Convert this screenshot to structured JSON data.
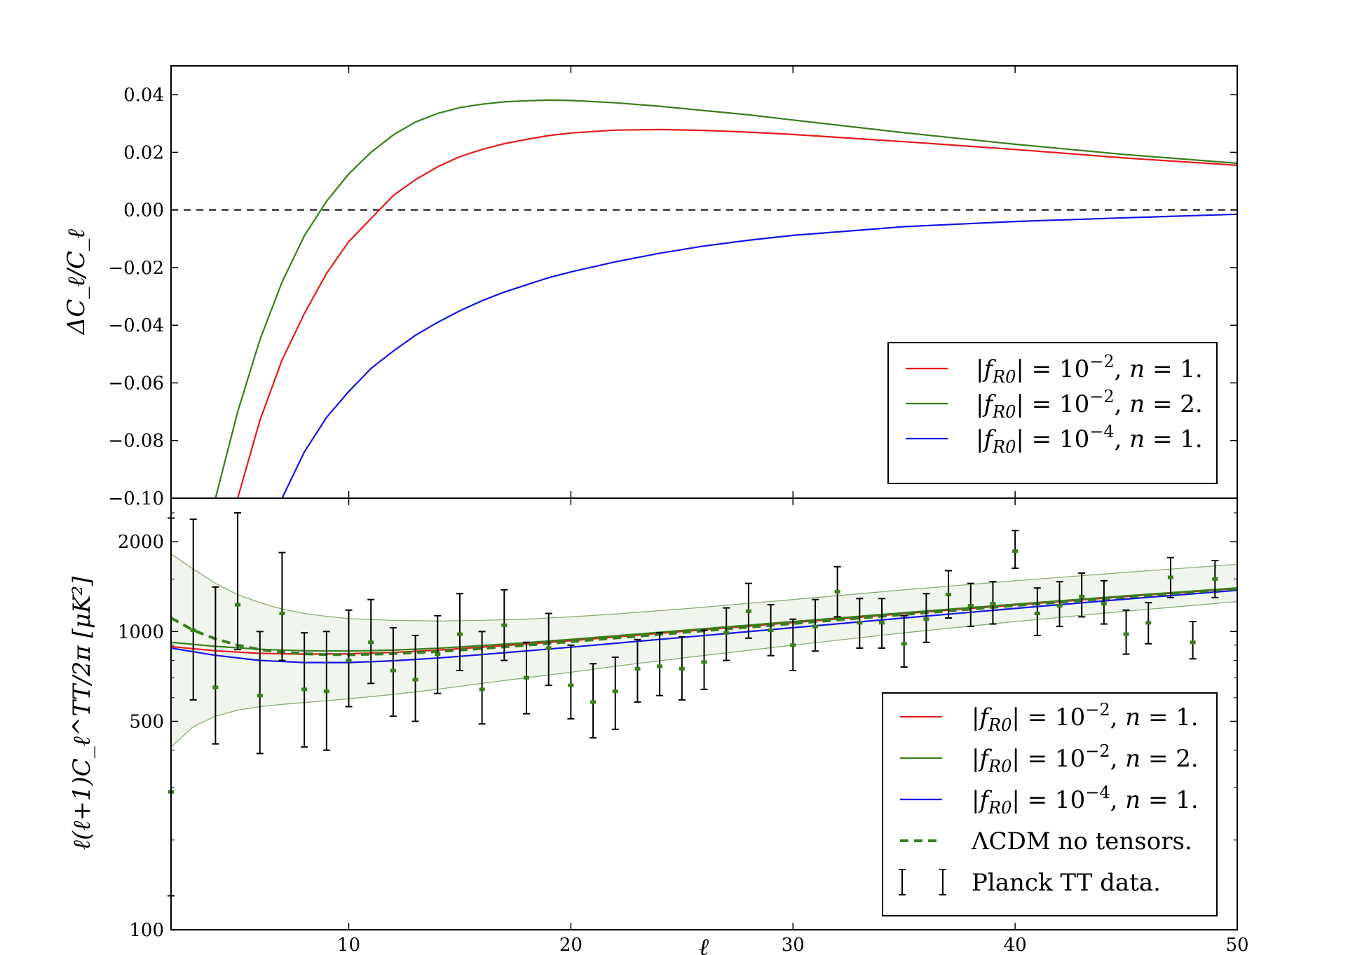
{
  "chart_data": [
    {
      "type": "line",
      "title": "",
      "xlabel": "",
      "ylabel": "ΔC_ℓ/C_ℓ",
      "xlim": [
        2,
        50
      ],
      "ylim": [
        -0.1,
        0.05
      ],
      "yticks": [
        0.04,
        0.02,
        0.0,
        -0.02,
        -0.04,
        -0.06,
        -0.08,
        -0.1
      ],
      "ytick_labels": [
        "0.04",
        "0.02",
        "0.00",
        "−0.02",
        "−0.04",
        "−0.06",
        "−0.08",
        "−0.10"
      ],
      "legend_position": "lower-right",
      "reference_line": {
        "y": 0.0,
        "style": "dashed",
        "color": "#000000"
      },
      "series": [
        {
          "name": "|f_R0| = 10^−2, n = 1.",
          "color": "#e41a1c",
          "x": [
            5,
            6,
            7,
            8,
            9,
            10,
            11,
            12,
            13,
            14,
            15,
            16,
            17,
            18,
            19,
            20,
            22,
            24,
            26,
            28,
            30,
            35,
            40,
            45,
            50
          ],
          "y": [
            -0.1,
            -0.073,
            -0.052,
            -0.036,
            -0.022,
            -0.011,
            -0.003,
            0.005,
            0.0105,
            0.015,
            0.0185,
            0.021,
            0.023,
            0.0245,
            0.0258,
            0.0267,
            0.0277,
            0.0279,
            0.0276,
            0.027,
            0.0262,
            0.0237,
            0.021,
            0.018,
            0.0155
          ]
        },
        {
          "name": "|f_R0| = 10^−2, n = 2.",
          "color": "#3a7d1c",
          "x": [
            4,
            5,
            6,
            7,
            8,
            9,
            10,
            11,
            12,
            13,
            14,
            15,
            16,
            17,
            18,
            19,
            20,
            22,
            24,
            26,
            28,
            30,
            35,
            40,
            45,
            50
          ],
          "y": [
            -0.1,
            -0.07,
            -0.045,
            -0.025,
            -0.009,
            0.003,
            0.0125,
            0.02,
            0.026,
            0.0305,
            0.0335,
            0.0355,
            0.0367,
            0.0375,
            0.0379,
            0.0381,
            0.038,
            0.0372,
            0.036,
            0.0345,
            0.033,
            0.0312,
            0.0268,
            0.0228,
            0.0192,
            0.0162
          ]
        },
        {
          "name": "|f_R0| = 10^−4, n = 1.",
          "color": "#1414e6",
          "x": [
            7,
            8,
            9,
            10,
            11,
            12,
            13,
            14,
            15,
            16,
            17,
            18,
            19,
            20,
            22,
            24,
            26,
            28,
            30,
            35,
            40,
            45,
            50
          ],
          "y": [
            -0.1,
            -0.084,
            -0.072,
            -0.063,
            -0.055,
            -0.049,
            -0.0435,
            -0.039,
            -0.035,
            -0.0315,
            -0.0285,
            -0.026,
            -0.0235,
            -0.0215,
            -0.018,
            -0.015,
            -0.0125,
            -0.0105,
            -0.0088,
            -0.0058,
            -0.004,
            -0.0027,
            -0.0015
          ]
        }
      ]
    },
    {
      "type": "line",
      "title": "",
      "xlabel": "ℓ",
      "ylabel": "ℓ(ℓ+1)C_ℓ^TT/2π [μK²]",
      "xlim": [
        2,
        50
      ],
      "ylim": [
        100,
        2800
      ],
      "yscale": "log",
      "xticks": [
        10,
        20,
        30,
        40,
        50
      ],
      "xtick_labels": [
        "10",
        "20",
        "30",
        "40",
        "50"
      ],
      "yticks": [
        2000,
        1000,
        500,
        100
      ],
      "ytick_labels": [
        "2000",
        "1000",
        "500",
        "100"
      ],
      "legend_position": "lower-right",
      "band": {
        "color": "#3a7d1c",
        "x": [
          2,
          3,
          4,
          5,
          6,
          7,
          8,
          9,
          10,
          12,
          14,
          16,
          18,
          20,
          22,
          25,
          30,
          35,
          40,
          45,
          50
        ],
        "upper": [
          1820,
          1620,
          1450,
          1330,
          1250,
          1190,
          1150,
          1125,
          1105,
          1090,
          1085,
          1090,
          1100,
          1120,
          1145,
          1190,
          1280,
          1380,
          1480,
          1580,
          1680
        ],
        "lower": [
          410,
          480,
          520,
          545,
          560,
          570,
          578,
          586,
          595,
          615,
          640,
          670,
          700,
          730,
          765,
          815,
          900,
          990,
          1080,
          1170,
          1260
        ]
      },
      "series": [
        {
          "name": "|f_R0| = 10^−2, n = 1.",
          "color": "#e41a1c",
          "style": "solid",
          "x": [
            2,
            4,
            6,
            8,
            10,
            12,
            14,
            16,
            18,
            20,
            25,
            30,
            35,
            40,
            45,
            50
          ],
          "y": [
            890,
            862,
            845,
            840,
            842,
            851,
            866,
            886,
            908,
            932,
            1000,
            1072,
            1148,
            1228,
            1310,
            1395
          ]
        },
        {
          "name": "|f_R0| = 10^−2, n = 2.",
          "color": "#3a7d1c",
          "style": "solid",
          "x": [
            2,
            4,
            6,
            8,
            10,
            12,
            14,
            16,
            18,
            20,
            25,
            30,
            35,
            40,
            45,
            50
          ],
          "y": [
            920,
            892,
            872,
            862,
            860,
            866,
            879,
            897,
            918,
            941,
            1008,
            1080,
            1156,
            1235,
            1317,
            1400
          ]
        },
        {
          "name": "|f_R0| = 10^−4, n = 1.",
          "color": "#1414e6",
          "style": "solid",
          "x": [
            2,
            4,
            6,
            8,
            10,
            12,
            14,
            16,
            18,
            20,
            25,
            30,
            35,
            40,
            45,
            50
          ],
          "y": [
            880,
            832,
            800,
            787,
            787,
            798,
            815,
            837,
            861,
            886,
            955,
            1030,
            1110,
            1195,
            1285,
            1375
          ]
        },
        {
          "name": "ΛCDM no tensors.",
          "color": "#3a7d1c",
          "style": "dashed",
          "x": [
            2,
            3,
            4,
            5,
            6,
            7,
            8,
            9,
            10,
            12,
            14,
            16,
            18,
            20,
            25,
            30,
            35,
            40,
            45,
            50
          ],
          "y": [
            1110,
            1010,
            945,
            900,
            870,
            852,
            842,
            837,
            836,
            843,
            857,
            877,
            900,
            925,
            992,
            1064,
            1141,
            1222,
            1306,
            1392
          ]
        },
        {
          "name": "Planck TT data.",
          "color": "#000000",
          "style": "errorbar",
          "marker_color": "#3a7d1c",
          "x": [
            2,
            3,
            4,
            5,
            6,
            7,
            8,
            9,
            10,
            11,
            12,
            13,
            14,
            15,
            16,
            17,
            18,
            19,
            20,
            21,
            22,
            23,
            24,
            25,
            26,
            27,
            28,
            29,
            30,
            31,
            32,
            33,
            34,
            35,
            36,
            37,
            38,
            39,
            40,
            41,
            42,
            43,
            44,
            45,
            46,
            47,
            48,
            49
          ],
          "y": [
            290,
            1010,
            650,
            1230,
            610,
            1150,
            640,
            630,
            800,
            920,
            740,
            690,
            840,
            980,
            640,
            1050,
            700,
            880,
            660,
            580,
            630,
            750,
            765,
            750,
            790,
            990,
            1170,
            1010,
            900,
            1040,
            1360,
            1070,
            1070,
            910,
            1100,
            1330,
            1220,
            1240,
            1860,
            1150,
            1220,
            1310,
            1240,
            980,
            1070,
            1520,
            920,
            1500
          ],
          "lo": [
            130,
            590,
            420,
            870,
            390,
            800,
            410,
            400,
            560,
            670,
            520,
            500,
            620,
            740,
            490,
            800,
            530,
            660,
            510,
            440,
            470,
            580,
            610,
            590,
            640,
            800,
            950,
            830,
            740,
            860,
            1120,
            880,
            880,
            760,
            920,
            1110,
            1040,
            1060,
            1630,
            970,
            1040,
            1120,
            1060,
            840,
            910,
            1300,
            810,
            1300
          ],
          "hi": [
            2400,
            2380,
            1410,
            2500,
            1000,
            1840,
            990,
            1000,
            1180,
            1280,
            1030,
            970,
            1130,
            1340,
            1000,
            1380,
            920,
            1150,
            900,
            780,
            820,
            940,
            990,
            960,
            1010,
            1200,
            1450,
            1230,
            1100,
            1280,
            1650,
            1290,
            1290,
            1130,
            1340,
            1600,
            1450,
            1470,
            2180,
            1400,
            1470,
            1570,
            1480,
            1180,
            1250,
            1770,
            1080,
            1730
          ]
        }
      ]
    }
  ]
}
